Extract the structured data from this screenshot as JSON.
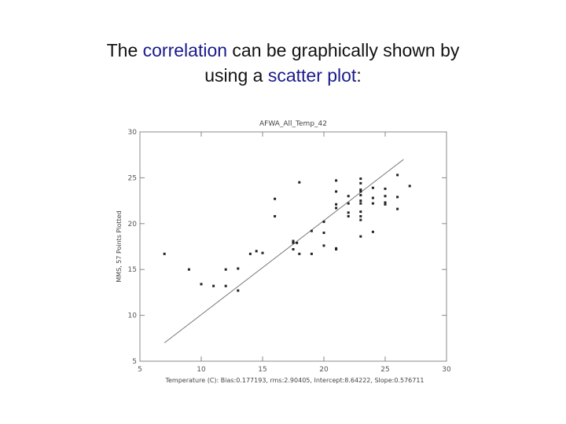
{
  "heading": {
    "part1": "The ",
    "highlight1": "correlation",
    "part2": " can be graphically shown by",
    "part3": "using a ",
    "highlight2": "scatter plot",
    "part4": ":"
  },
  "colors": {
    "highlight": "#1a1a8c",
    "points": "#222222",
    "axes": "#888888"
  },
  "chart_data": {
    "type": "scatter",
    "title": "AFWA_All_Temp_42",
    "xlabel": "Temperature (C): Bias:0.177193, rms:2.90405, Intercept:8.64222, Slope:0.576711",
    "ylabel": "MMS,        57 Points Plotted",
    "xlim": [
      5,
      30
    ],
    "ylim": [
      5,
      30
    ],
    "xticks": [
      5,
      10,
      15,
      20,
      25,
      30
    ],
    "yticks": [
      5,
      10,
      15,
      20,
      25,
      30
    ],
    "grid": false,
    "series": [
      {
        "x": [
          7,
          9,
          10,
          11,
          12,
          12,
          13,
          13,
          14,
          14.5,
          15,
          16,
          16,
          17.5,
          17.5,
          17.8,
          18,
          18,
          19,
          19,
          20,
          20,
          20,
          21,
          21,
          21,
          21,
          21,
          22,
          22,
          22,
          22,
          23,
          23,
          23,
          23,
          23,
          23,
          23,
          23,
          23,
          23,
          23,
          24,
          24,
          24,
          24,
          25,
          25,
          25,
          25,
          26,
          26,
          26,
          27,
          17.5,
          21
        ],
        "y": [
          16.7,
          15,
          13.4,
          13.2,
          15,
          13.2,
          15.1,
          12.7,
          16.7,
          17,
          16.8,
          20.8,
          22.7,
          17.9,
          17.2,
          17.9,
          16.7,
          24.5,
          19.2,
          16.7,
          20.2,
          19,
          17.6,
          24.7,
          23.5,
          21.7,
          22.1,
          17.3,
          23,
          22.2,
          21.2,
          20.8,
          24.9,
          24.4,
          23.7,
          23.5,
          23.1,
          22.5,
          22.2,
          21.3,
          20.8,
          20.4,
          18.6,
          23.9,
          22.8,
          22.2,
          19.1,
          23.8,
          23,
          22.3,
          22.1,
          25.3,
          22.9,
          21.6,
          24.1,
          18.1,
          17.2
        ]
      }
    ],
    "fit_line": {
      "x": [
        7,
        26.5
      ],
      "y": [
        7,
        27
      ]
    }
  }
}
